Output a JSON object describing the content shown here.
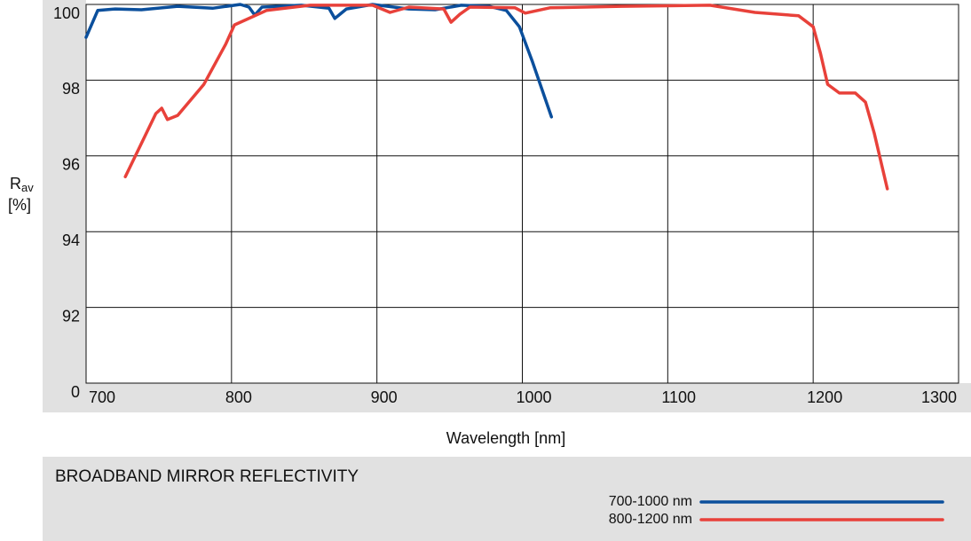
{
  "chart_data": {
    "type": "line",
    "title": "BROADBAND MIRROR REFLECTIVITY",
    "x_label": "Wavelength [nm]",
    "y_label": "R",
    "y_label_sub": "av",
    "y_label_unit": "[%]",
    "xlim": [
      700,
      1300
    ],
    "xticks": [
      700,
      800,
      900,
      1000,
      1100,
      1200,
      1300
    ],
    "ylim": [
      90,
      100
    ],
    "yticks": [
      {
        "value": 90,
        "label": "0"
      },
      92,
      94,
      96,
      98,
      100
    ],
    "grid": true,
    "legend": "lower right",
    "series": [
      {
        "name": "700-1000 nm",
        "color": "#0b4f9c",
        "x": [
          700,
          708,
          720,
          738,
          763,
          787,
          806,
          812,
          816,
          821,
          848,
          867,
          871,
          879,
          897,
          922,
          940,
          958,
          977,
          989,
          998,
          1007,
          1020
        ],
        "values": [
          99.13,
          99.84,
          99.88,
          99.86,
          99.95,
          99.9,
          100,
          99.93,
          99.72,
          99.93,
          99.98,
          99.9,
          99.63,
          99.88,
          100,
          99.88,
          99.86,
          99.98,
          99.95,
          99.84,
          99.41,
          98.48,
          97.03
        ]
      },
      {
        "name": "800-1200 nm",
        "color": "#e8413a",
        "x": [
          727,
          748,
          752,
          756,
          763,
          781,
          796,
          802,
          824,
          854,
          897,
          909,
          922,
          946,
          951,
          957,
          964,
          995,
          1002,
          1019,
          1068,
          1129,
          1160,
          1190,
          1200,
          1205,
          1210,
          1218,
          1229,
          1236,
          1242,
          1251
        ],
        "values": [
          95.45,
          97.12,
          97.26,
          96.96,
          97.07,
          97.89,
          98.95,
          99.46,
          99.84,
          99.98,
          99.98,
          99.79,
          99.93,
          99.88,
          99.53,
          99.74,
          99.93,
          99.91,
          99.77,
          99.91,
          99.95,
          99.98,
          99.79,
          99.7,
          99.41,
          98.71,
          97.89,
          97.66,
          97.66,
          97.42,
          96.6,
          95.13
        ]
      }
    ]
  }
}
